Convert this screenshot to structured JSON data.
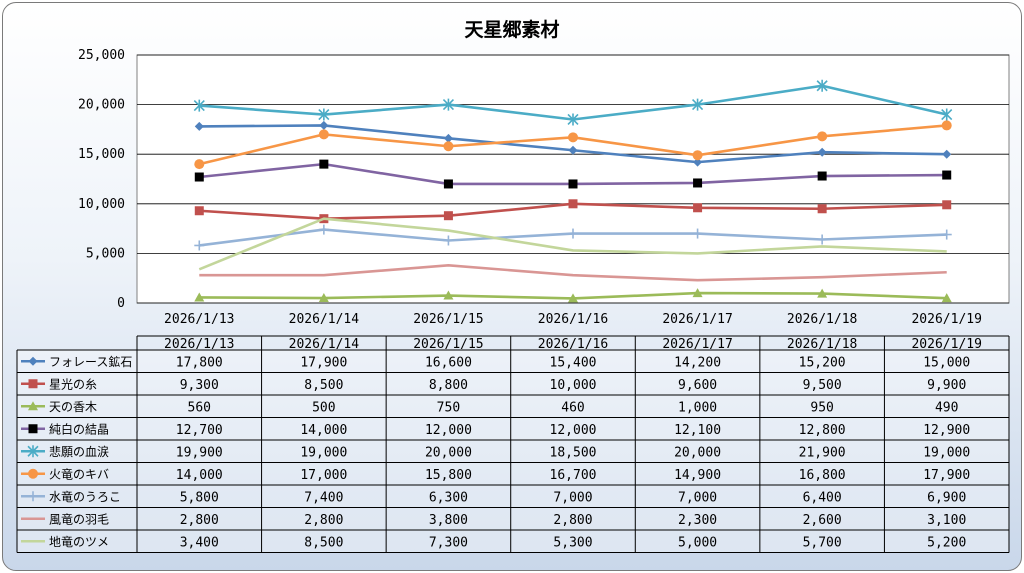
{
  "title": "天星郷素材",
  "chart_data": {
    "type": "line",
    "title": "天星郷素材",
    "xlabel": "",
    "ylabel": "",
    "ylim": [
      0,
      25000
    ],
    "yticks": [
      "0",
      "5,000",
      "10,000",
      "15,000",
      "20,000",
      "25,000"
    ],
    "grid": true,
    "legend_placement": "data-table",
    "categories": [
      "2026/1/13",
      "2026/1/14",
      "2026/1/15",
      "2026/1/16",
      "2026/1/17",
      "2026/1/18",
      "2026/1/19"
    ],
    "series": [
      {
        "name": "フォレース鉱石",
        "color": "#4f81bd",
        "marker": "diamond",
        "values": [
          17800,
          17900,
          16600,
          15400,
          14200,
          15200,
          15000
        ],
        "labels": [
          "17,800",
          "17,900",
          "16,600",
          "15,400",
          "14,200",
          "15,200",
          "15,000"
        ]
      },
      {
        "name": "星光の糸",
        "color": "#c0504d",
        "marker": "square",
        "values": [
          9300,
          8500,
          8800,
          10000,
          9600,
          9500,
          9900
        ],
        "labels": [
          "9,300",
          "8,500",
          "8,800",
          "10,000",
          "9,600",
          "9,500",
          "9,900"
        ]
      },
      {
        "name": "天の香木",
        "color": "#9bbb59",
        "marker": "triangle",
        "values": [
          560,
          500,
          750,
          460,
          1000,
          950,
          490
        ],
        "labels": [
          "560",
          "500",
          "750",
          "460",
          "1,000",
          "950",
          "490"
        ]
      },
      {
        "name": "純白の結晶",
        "color": "#8064a2",
        "marker": "black-square",
        "values": [
          12700,
          14000,
          12000,
          12000,
          12100,
          12800,
          12900
        ],
        "labels": [
          "12,700",
          "14,000",
          "12,000",
          "12,000",
          "12,100",
          "12,800",
          "12,900"
        ]
      },
      {
        "name": "悲願の血涙",
        "color": "#4bacc6",
        "marker": "star",
        "values": [
          19900,
          19000,
          20000,
          18500,
          20000,
          21900,
          19000
        ],
        "labels": [
          "19,900",
          "19,000",
          "20,000",
          "18,500",
          "20,000",
          "21,900",
          "19,000"
        ]
      },
      {
        "name": "火竜のキバ",
        "color": "#f79646",
        "marker": "circle",
        "values": [
          14000,
          17000,
          15800,
          16700,
          14900,
          16800,
          17900
        ],
        "labels": [
          "14,000",
          "17,000",
          "15,800",
          "16,700",
          "14,900",
          "16,800",
          "17,900"
        ]
      },
      {
        "name": "水竜のうろこ",
        "color": "#95b3d7",
        "marker": "plus",
        "values": [
          5800,
          7400,
          6300,
          7000,
          7000,
          6400,
          6900
        ],
        "labels": [
          "5,800",
          "7,400",
          "6,300",
          "7,000",
          "7,000",
          "6,400",
          "6,900"
        ]
      },
      {
        "name": "風竜の羽毛",
        "color": "#d99694",
        "marker": "none",
        "values": [
          2800,
          2800,
          3800,
          2800,
          2300,
          2600,
          3100
        ],
        "labels": [
          "2,800",
          "2,800",
          "3,800",
          "2,800",
          "2,300",
          "2,600",
          "3,100"
        ]
      },
      {
        "name": "地竜のツメ",
        "color": "#c3d69b",
        "marker": "none",
        "values": [
          3400,
          8500,
          7300,
          5300,
          5000,
          5700,
          5200
        ],
        "labels": [
          "3,400",
          "8,500",
          "7,300",
          "5,300",
          "5,000",
          "5,700",
          "5,200"
        ]
      }
    ]
  }
}
